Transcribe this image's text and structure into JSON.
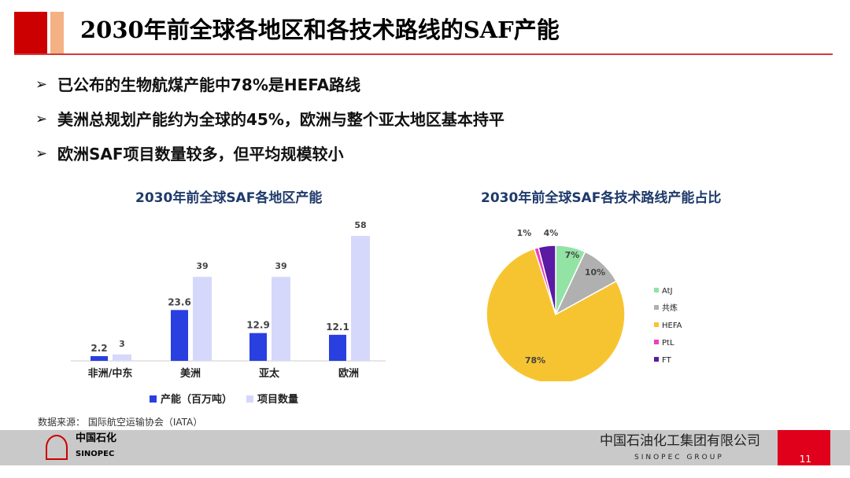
{
  "title": "2030年前全球各地区和各技术路线的SAF产能",
  "bullets": [
    "已公布的生物航煤产能中78%是HEFA路线",
    "美洲总规划产能约为全球的45%，欧洲与整个亚太地区基本持平",
    "欧洲SAF项目数量较多，但平均规模较小"
  ],
  "chart_data": [
    {
      "type": "bar",
      "title": "2030年前全球SAF各地区产能",
      "categories": [
        "非洲/中东",
        "美洲",
        "亚太",
        "欧洲"
      ],
      "series": [
        {
          "name": "产能（百万吨）",
          "values": [
            2.2,
            23.6,
            12.9,
            12.1
          ],
          "color": "#2a3fe0"
        },
        {
          "name": "项目数量",
          "values": [
            3,
            39,
            39,
            58
          ],
          "color": "#d5d8fb"
        }
      ],
      "legend": "bottom",
      "grid": false
    },
    {
      "type": "pie",
      "title": "2030年前全球SAF各技术路线产能占比",
      "labels": [
        "AtJ",
        "共炼",
        "HEFA",
        "PtL",
        "FT"
      ],
      "values": [
        7,
        10,
        78,
        1,
        4
      ],
      "value_labels": [
        "7%",
        "10%",
        "78%",
        "1%",
        "4%"
      ],
      "colors": [
        "#92e3a4",
        "#b0b0b0",
        "#f7c431",
        "#ee3fbf",
        "#5a1aa3"
      ],
      "legend": "right"
    }
  ],
  "source": "数据来源： 国际航空运输协会（IATA）",
  "footer": {
    "logo_cn": "中国石化",
    "logo_en": "SINOPEC",
    "company_cn": "中国石油化工集团有限公司",
    "company_en": "SINOPEC GROUP",
    "page": "11"
  }
}
